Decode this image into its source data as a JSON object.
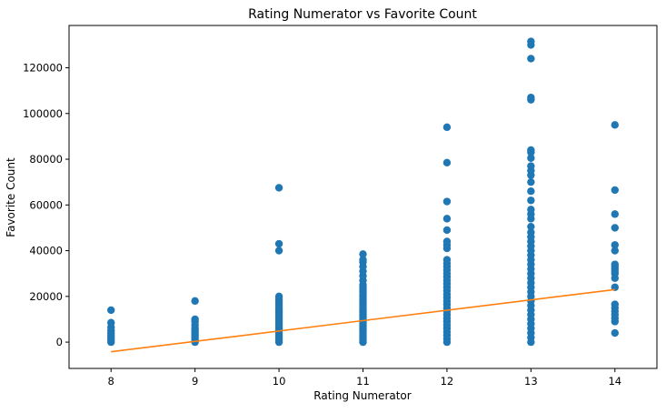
{
  "chart_data": {
    "type": "scatter",
    "title": "Rating Numerator vs Favorite Count",
    "xlabel": "Rating Numerator",
    "ylabel": "Favorite Count",
    "xlim": [
      7.5,
      14.5
    ],
    "ylim": [
      -11500,
      138500
    ],
    "x_ticks": [
      8,
      9,
      10,
      11,
      12,
      13,
      14
    ],
    "y_ticks": [
      0,
      20000,
      40000,
      60000,
      80000,
      100000,
      120000
    ],
    "grid": false,
    "colors": {
      "points": "#1f77b4",
      "trend": "#ff7f0e"
    },
    "series": [
      {
        "type": "scatter",
        "points": [
          {
            "x": 8,
            "y": 0
          },
          {
            "x": 8,
            "y": 1000
          },
          {
            "x": 8,
            "y": 2000
          },
          {
            "x": 8,
            "y": 3000
          },
          {
            "x": 8,
            "y": 4000
          },
          {
            "x": 8,
            "y": 5000
          },
          {
            "x": 8,
            "y": 6500
          },
          {
            "x": 8,
            "y": 8500
          },
          {
            "x": 8,
            "y": 14000
          },
          {
            "x": 9,
            "y": 0
          },
          {
            "x": 9,
            "y": 1000
          },
          {
            "x": 9,
            "y": 2000
          },
          {
            "x": 9,
            "y": 3000
          },
          {
            "x": 9,
            "y": 4000
          },
          {
            "x": 9,
            "y": 5000
          },
          {
            "x": 9,
            "y": 6000
          },
          {
            "x": 9,
            "y": 7500
          },
          {
            "x": 9,
            "y": 9000
          },
          {
            "x": 9,
            "y": 10000
          },
          {
            "x": 9,
            "y": 18000
          },
          {
            "x": 10,
            "y": 0
          },
          {
            "x": 10,
            "y": 1000
          },
          {
            "x": 10,
            "y": 2000
          },
          {
            "x": 10,
            "y": 3000
          },
          {
            "x": 10,
            "y": 4000
          },
          {
            "x": 10,
            "y": 5000
          },
          {
            "x": 10,
            "y": 6000
          },
          {
            "x": 10,
            "y": 7000
          },
          {
            "x": 10,
            "y": 8000
          },
          {
            "x": 10,
            "y": 9000
          },
          {
            "x": 10,
            "y": 10000
          },
          {
            "x": 10,
            "y": 11000
          },
          {
            "x": 10,
            "y": 12000
          },
          {
            "x": 10,
            "y": 13000
          },
          {
            "x": 10,
            "y": 14000
          },
          {
            "x": 10,
            "y": 15000
          },
          {
            "x": 10,
            "y": 16000
          },
          {
            "x": 10,
            "y": 17000
          },
          {
            "x": 10,
            "y": 18000
          },
          {
            "x": 10,
            "y": 19000
          },
          {
            "x": 10,
            "y": 20000
          },
          {
            "x": 10,
            "y": 40000
          },
          {
            "x": 10,
            "y": 43000
          },
          {
            "x": 10,
            "y": 67500
          },
          {
            "x": 11,
            "y": 0
          },
          {
            "x": 11,
            "y": 1000
          },
          {
            "x": 11,
            "y": 2000
          },
          {
            "x": 11,
            "y": 3000
          },
          {
            "x": 11,
            "y": 4000
          },
          {
            "x": 11,
            "y": 5000
          },
          {
            "x": 11,
            "y": 6000
          },
          {
            "x": 11,
            "y": 7000
          },
          {
            "x": 11,
            "y": 8000
          },
          {
            "x": 11,
            "y": 9000
          },
          {
            "x": 11,
            "y": 10000
          },
          {
            "x": 11,
            "y": 11000
          },
          {
            "x": 11,
            "y": 12000
          },
          {
            "x": 11,
            "y": 13000
          },
          {
            "x": 11,
            "y": 14000
          },
          {
            "x": 11,
            "y": 15000
          },
          {
            "x": 11,
            "y": 16000
          },
          {
            "x": 11,
            "y": 17000
          },
          {
            "x": 11,
            "y": 18000
          },
          {
            "x": 11,
            "y": 19000
          },
          {
            "x": 11,
            "y": 20000
          },
          {
            "x": 11,
            "y": 21000
          },
          {
            "x": 11,
            "y": 22000
          },
          {
            "x": 11,
            "y": 23000
          },
          {
            "x": 11,
            "y": 24000
          },
          {
            "x": 11,
            "y": 25000
          },
          {
            "x": 11,
            "y": 27000
          },
          {
            "x": 11,
            "y": 29000
          },
          {
            "x": 11,
            "y": 31000
          },
          {
            "x": 11,
            "y": 33000
          },
          {
            "x": 11,
            "y": 35000
          },
          {
            "x": 11,
            "y": 36000
          },
          {
            "x": 11,
            "y": 38500
          },
          {
            "x": 12,
            "y": 0
          },
          {
            "x": 12,
            "y": 1500
          },
          {
            "x": 12,
            "y": 3000
          },
          {
            "x": 12,
            "y": 4500
          },
          {
            "x": 12,
            "y": 6000
          },
          {
            "x": 12,
            "y": 7500
          },
          {
            "x": 12,
            "y": 9000
          },
          {
            "x": 12,
            "y": 10500
          },
          {
            "x": 12,
            "y": 12000
          },
          {
            "x": 12,
            "y": 13500
          },
          {
            "x": 12,
            "y": 15000
          },
          {
            "x": 12,
            "y": 16500
          },
          {
            "x": 12,
            "y": 18000
          },
          {
            "x": 12,
            "y": 19500
          },
          {
            "x": 12,
            "y": 21000
          },
          {
            "x": 12,
            "y": 22500
          },
          {
            "x": 12,
            "y": 24000
          },
          {
            "x": 12,
            "y": 25500
          },
          {
            "x": 12,
            "y": 27000
          },
          {
            "x": 12,
            "y": 28500
          },
          {
            "x": 12,
            "y": 30000
          },
          {
            "x": 12,
            "y": 31500
          },
          {
            "x": 12,
            "y": 33000
          },
          {
            "x": 12,
            "y": 34500
          },
          {
            "x": 12,
            "y": 36000
          },
          {
            "x": 12,
            "y": 41000
          },
          {
            "x": 12,
            "y": 42500
          },
          {
            "x": 12,
            "y": 44000
          },
          {
            "x": 12,
            "y": 49000
          },
          {
            "x": 12,
            "y": 54000
          },
          {
            "x": 12,
            "y": 61500
          },
          {
            "x": 12,
            "y": 78500
          },
          {
            "x": 12,
            "y": 94000
          },
          {
            "x": 13,
            "y": 0
          },
          {
            "x": 13,
            "y": 2000
          },
          {
            "x": 13,
            "y": 4000
          },
          {
            "x": 13,
            "y": 6000
          },
          {
            "x": 13,
            "y": 8000
          },
          {
            "x": 13,
            "y": 10000
          },
          {
            "x": 13,
            "y": 12000
          },
          {
            "x": 13,
            "y": 14000
          },
          {
            "x": 13,
            "y": 16000
          },
          {
            "x": 13,
            "y": 18000
          },
          {
            "x": 13,
            "y": 20000
          },
          {
            "x": 13,
            "y": 22000
          },
          {
            "x": 13,
            "y": 24000
          },
          {
            "x": 13,
            "y": 26000
          },
          {
            "x": 13,
            "y": 28000
          },
          {
            "x": 13,
            "y": 30000
          },
          {
            "x": 13,
            "y": 32000
          },
          {
            "x": 13,
            "y": 34000
          },
          {
            "x": 13,
            "y": 36000
          },
          {
            "x": 13,
            "y": 38000
          },
          {
            "x": 13,
            "y": 40000
          },
          {
            "x": 13,
            "y": 42000
          },
          {
            "x": 13,
            "y": 44000
          },
          {
            "x": 13,
            "y": 46000
          },
          {
            "x": 13,
            "y": 48000
          },
          {
            "x": 13,
            "y": 50500
          },
          {
            "x": 13,
            "y": 54000
          },
          {
            "x": 13,
            "y": 56000
          },
          {
            "x": 13,
            "y": 58000
          },
          {
            "x": 13,
            "y": 62000
          },
          {
            "x": 13,
            "y": 66000
          },
          {
            "x": 13,
            "y": 70000
          },
          {
            "x": 13,
            "y": 73000
          },
          {
            "x": 13,
            "y": 75000
          },
          {
            "x": 13,
            "y": 77000
          },
          {
            "x": 13,
            "y": 80500
          },
          {
            "x": 13,
            "y": 83000
          },
          {
            "x": 13,
            "y": 84000
          },
          {
            "x": 13,
            "y": 106000
          },
          {
            "x": 13,
            "y": 107000
          },
          {
            "x": 13,
            "y": 124000
          },
          {
            "x": 13,
            "y": 130000
          },
          {
            "x": 13,
            "y": 131500
          },
          {
            "x": 14,
            "y": 4000
          },
          {
            "x": 14,
            "y": 9000
          },
          {
            "x": 14,
            "y": 10500
          },
          {
            "x": 14,
            "y": 12000
          },
          {
            "x": 14,
            "y": 13500
          },
          {
            "x": 14,
            "y": 15000
          },
          {
            "x": 14,
            "y": 16500
          },
          {
            "x": 14,
            "y": 24000
          },
          {
            "x": 14,
            "y": 28000
          },
          {
            "x": 14,
            "y": 30000
          },
          {
            "x": 14,
            "y": 31000
          },
          {
            "x": 14,
            "y": 32000
          },
          {
            "x": 14,
            "y": 33000
          },
          {
            "x": 14,
            "y": 34000
          },
          {
            "x": 14,
            "y": 40000
          },
          {
            "x": 14,
            "y": 42500
          },
          {
            "x": 14,
            "y": 50000
          },
          {
            "x": 14,
            "y": 56000
          },
          {
            "x": 14,
            "y": 66500
          },
          {
            "x": 14,
            "y": 95000
          }
        ]
      },
      {
        "type": "line",
        "points": [
          {
            "x": 8,
            "y": -4200
          },
          {
            "x": 14,
            "y": 23000
          }
        ]
      }
    ]
  }
}
